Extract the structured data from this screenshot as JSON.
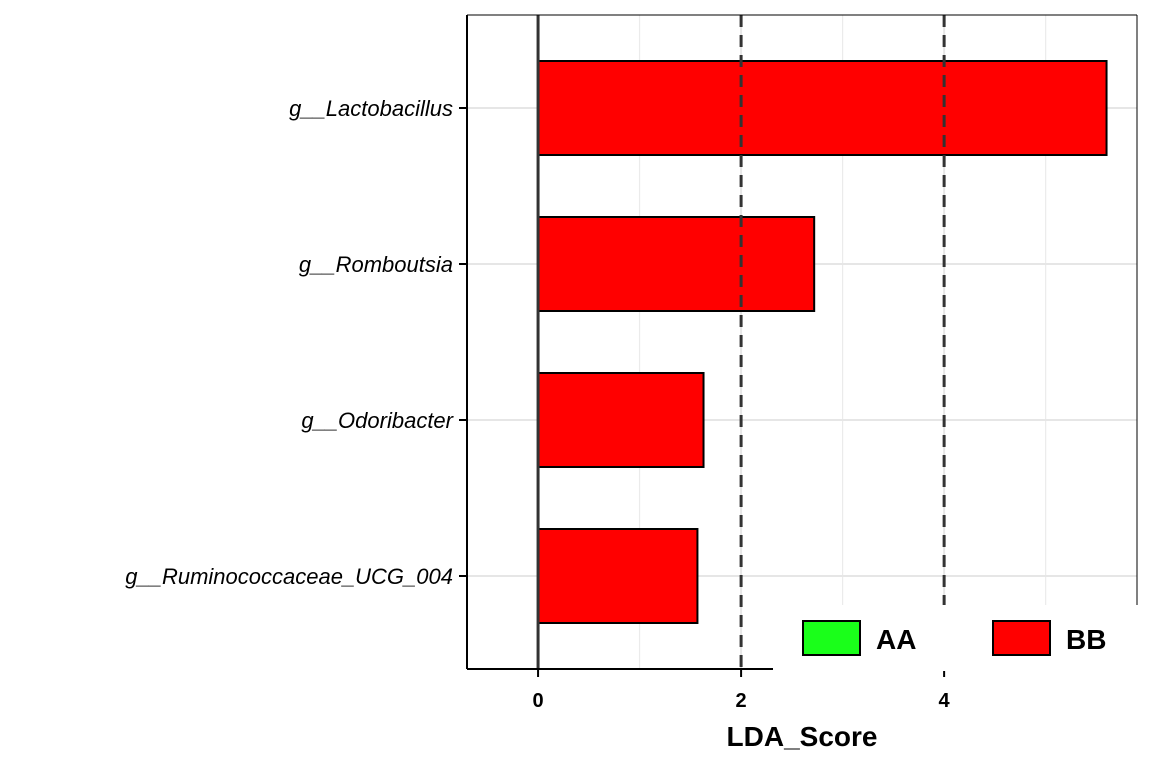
{
  "chart_data": {
    "type": "bar",
    "orientation": "horizontal",
    "categories": [
      "g__Lactobacillus",
      "g__Romboutsia",
      "g__Odoribacter",
      "g__Ruminococcaceae_UCG_004"
    ],
    "values": [
      5.6,
      2.72,
      1.63,
      1.57
    ],
    "groups": [
      "BB",
      "BB",
      "BB",
      "BB"
    ],
    "xlabel": "LDA_Score",
    "ylabel": "",
    "xlim": [
      -0.7,
      5.9
    ],
    "xticks": [
      0,
      2,
      4
    ],
    "reference_lines": [
      2,
      4
    ],
    "grid": true,
    "legend": {
      "placement": "bottom-right",
      "entries": [
        {
          "name": "AA",
          "color": "#1aff1a"
        },
        {
          "name": "BB",
          "color": "#ff0000"
        }
      ]
    },
    "colors": {
      "AA": "#1aff1a",
      "BB": "#ff0000"
    }
  }
}
